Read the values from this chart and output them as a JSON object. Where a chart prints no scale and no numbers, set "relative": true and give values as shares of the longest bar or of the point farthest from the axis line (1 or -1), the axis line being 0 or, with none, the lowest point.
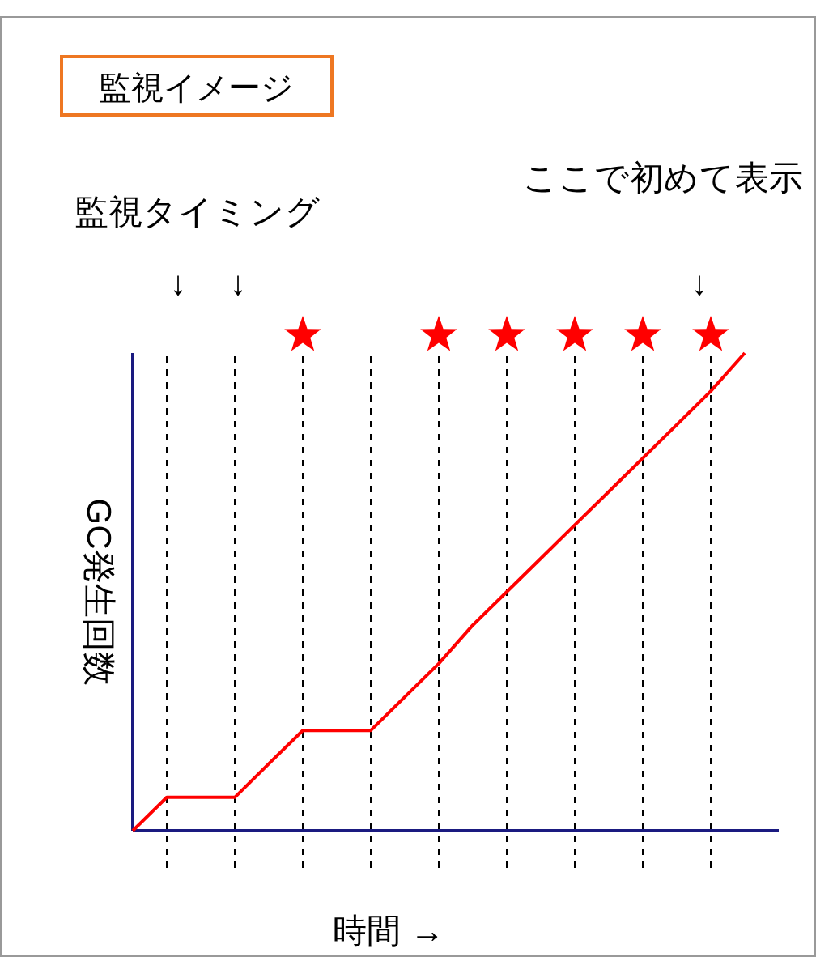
{
  "chart_data": {
    "type": "line",
    "title": "監視イメージ",
    "xlabel": "時間 →",
    "ylabel": "GC発生回数",
    "relative": true,
    "grid": "x",
    "categories": [
      null,
      null,
      null,
      null,
      null,
      null,
      null,
      null,
      null,
      null,
      null,
      null,
      null,
      null,
      null,
      null,
      null,
      null,
      null
    ],
    "series": [
      {
        "color": "#ff0000",
        "values": [
          0,
          0.07,
          0.07,
          0.07,
          0.14,
          0.21,
          0.21,
          0.21,
          0.28,
          0.35,
          0.43,
          0.5,
          0.57,
          0.64,
          0.71,
          0.78,
          0.85,
          0.92,
          1
        ]
      }
    ],
    "annotations": [
      "監視タイミング",
      "↓",
      "↓",
      "ここで初めて表示",
      "↓"
    ]
  }
}
